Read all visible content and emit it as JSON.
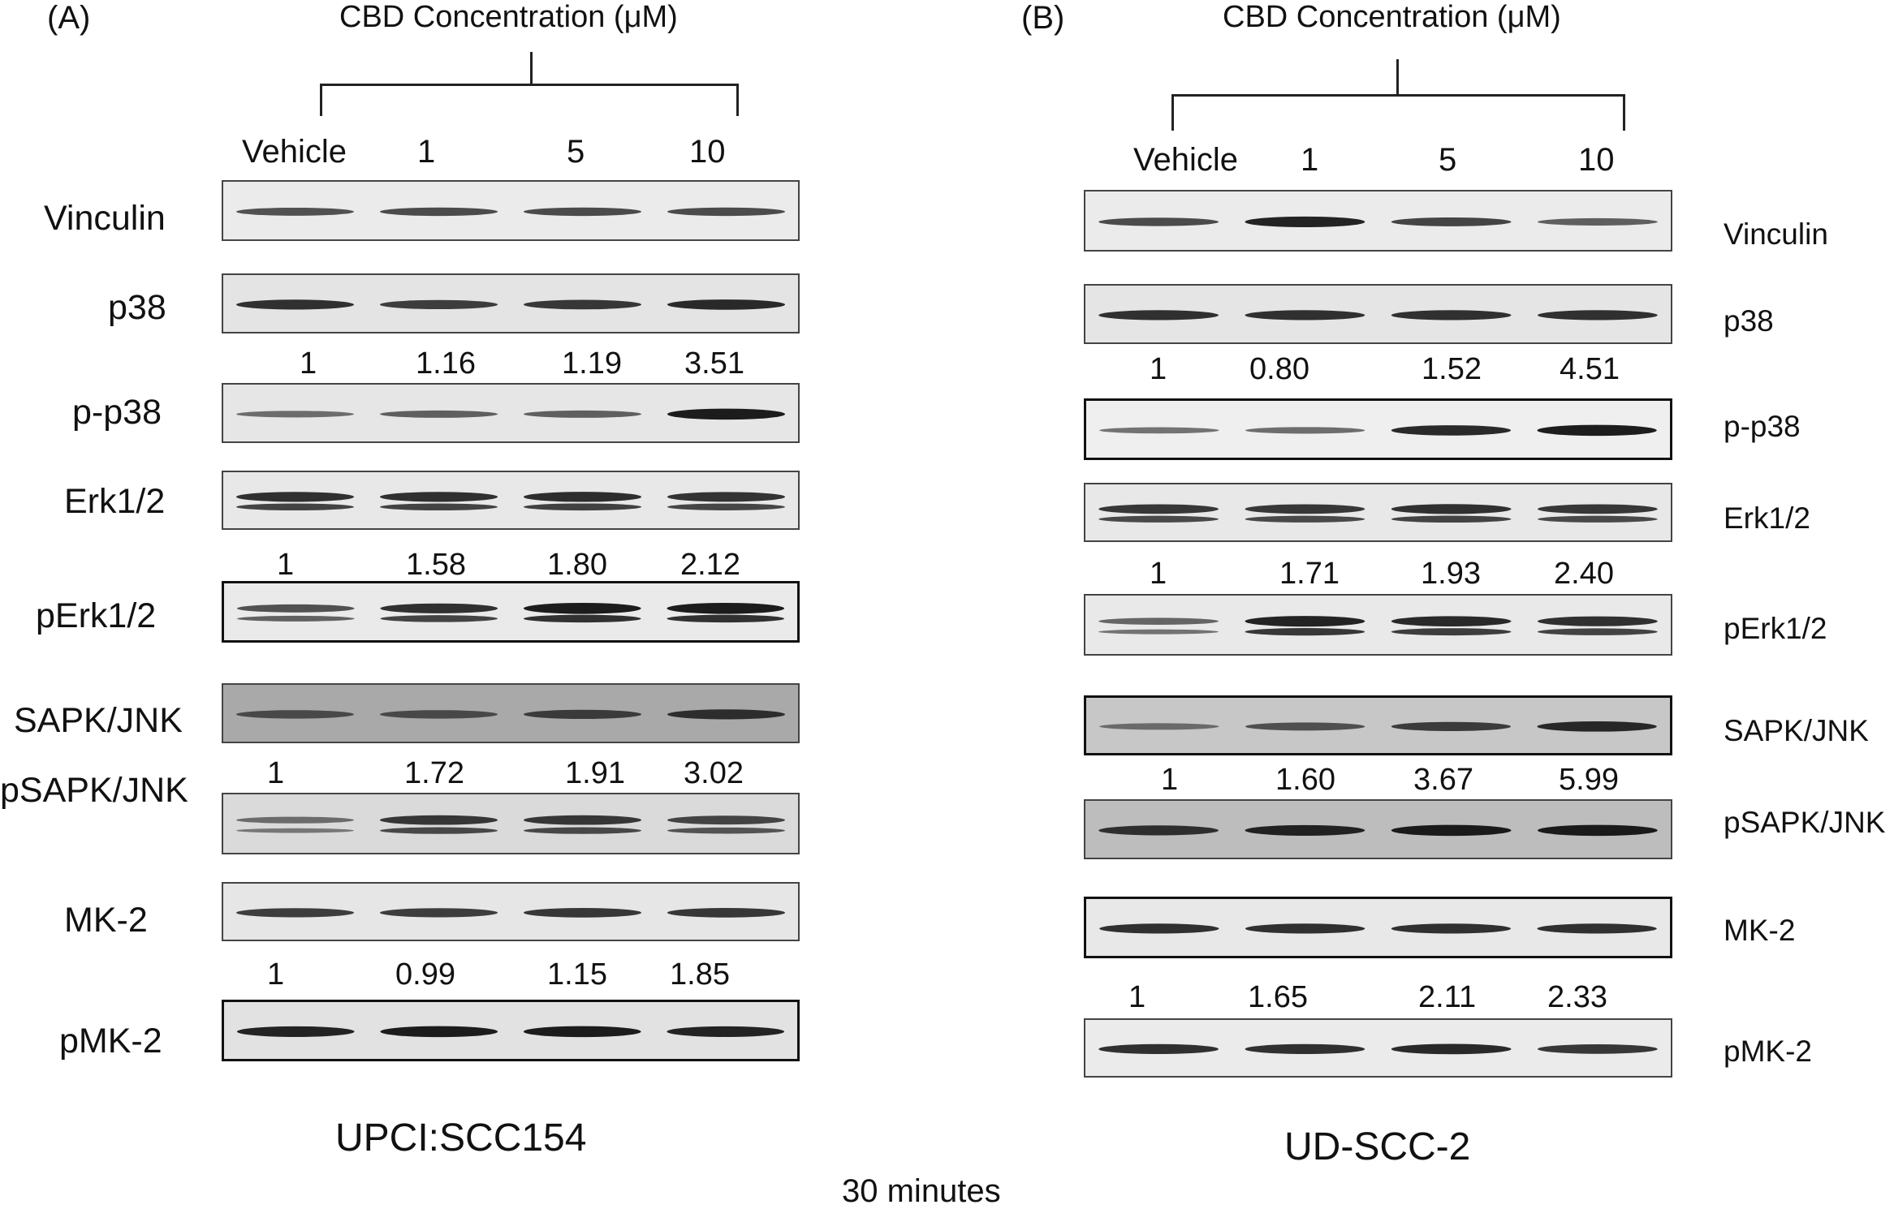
{
  "footer": "30 minutes",
  "panels": [
    {
      "letter": "(A)",
      "concentration_title": "CBD Concentration (μM)",
      "lanes": [
        "Vehicle",
        "1",
        "5",
        "10"
      ],
      "cell_line": "UPCI:SCC154",
      "rows": [
        {
          "label": "Vinculin",
          "bg": "#ebebeb",
          "levels": [
            0.55,
            0.6,
            0.6,
            0.6
          ],
          "doublet": false
        },
        {
          "label": "p38",
          "bg": "#e4e4e4",
          "levels": [
            0.8,
            0.7,
            0.75,
            0.85
          ],
          "doublet": false
        },
        {
          "label": "p-p38",
          "bg": "#e6e6e6",
          "levels": [
            0.35,
            0.45,
            0.45,
            0.95
          ],
          "doublet": false,
          "quant": [
            "1",
            "1.16",
            "1.19",
            "3.51"
          ]
        },
        {
          "label": "Erk1/2",
          "bg": "#e8e8e8",
          "levels": [
            0.8,
            0.8,
            0.82,
            0.78
          ],
          "doublet": true
        },
        {
          "label": "pErk1/2",
          "bg": "#eaeaea",
          "levels": [
            0.55,
            0.8,
            0.95,
            0.95
          ],
          "doublet": true,
          "quant": [
            "1",
            "1.58",
            "1.80",
            "2.12"
          ]
        },
        {
          "label": "SAPK/JNK",
          "bg": "#a9a9a9",
          "levels": [
            0.6,
            0.6,
            0.7,
            0.8
          ],
          "doublet": false
        },
        {
          "label": "pSAPK/JNK",
          "bg": "#dadada",
          "levels": [
            0.35,
            0.75,
            0.75,
            0.65
          ],
          "doublet": true,
          "quant": [
            "1",
            "1.72",
            "1.91",
            "3.02"
          ]
        },
        {
          "label": "MK-2",
          "bg": "#e6e6e6",
          "levels": [
            0.7,
            0.7,
            0.75,
            0.75
          ],
          "doublet": false
        },
        {
          "label": "pMK-2",
          "bg": "#e2e2e2",
          "levels": [
            0.9,
            0.95,
            0.95,
            0.9
          ],
          "doublet": false,
          "quant": [
            "1",
            "0.99",
            "1.15",
            "1.85"
          ]
        }
      ]
    },
    {
      "letter": "(B)",
      "concentration_title": "CBD Concentration (μM)",
      "lanes": [
        "Vehicle",
        "1",
        "5",
        "10"
      ],
      "cell_line": "UD-SCC-2",
      "rows": [
        {
          "label": "Vinculin",
          "bg": "#ebebeb",
          "levels": [
            0.6,
            0.9,
            0.65,
            0.45
          ],
          "doublet": false
        },
        {
          "label": "p38",
          "bg": "#e5e5e5",
          "levels": [
            0.8,
            0.8,
            0.8,
            0.8
          ],
          "doublet": false
        },
        {
          "label": "p-p38",
          "bg": "#efefef",
          "levels": [
            0.3,
            0.35,
            0.85,
            0.95
          ],
          "doublet": false,
          "quant": [
            "1",
            "0.80",
            "1.52",
            "4.51"
          ]
        },
        {
          "label": "Erk1/2",
          "bg": "#e8e8e8",
          "levels": [
            0.75,
            0.75,
            0.8,
            0.75
          ],
          "doublet": true
        },
        {
          "label": "pErk1/2",
          "bg": "#e9e9e9",
          "levels": [
            0.4,
            0.9,
            0.85,
            0.8
          ],
          "doublet": true,
          "quant": [
            "1",
            "1.71",
            "1.93",
            "2.40"
          ]
        },
        {
          "label": "SAPK/JNK",
          "bg": "#c7c7c7",
          "levels": [
            0.35,
            0.55,
            0.7,
            0.85
          ],
          "doublet": false
        },
        {
          "label": "pSAPK/JNK",
          "bg": "#bdbdbd",
          "levels": [
            0.8,
            0.9,
            0.95,
            0.95
          ],
          "doublet": false,
          "quant": [
            "1",
            "1.60",
            "3.67",
            "5.99"
          ]
        },
        {
          "label": "MK-2",
          "bg": "#e8e8e8",
          "levels": [
            0.8,
            0.8,
            0.8,
            0.8
          ],
          "doublet": false
        },
        {
          "label": "pMK-2",
          "bg": "#ebebeb",
          "levels": [
            0.8,
            0.8,
            0.85,
            0.75
          ],
          "doublet": false,
          "quant": [
            "1",
            "1.65",
            "2.11",
            "2.33"
          ]
        }
      ]
    }
  ]
}
